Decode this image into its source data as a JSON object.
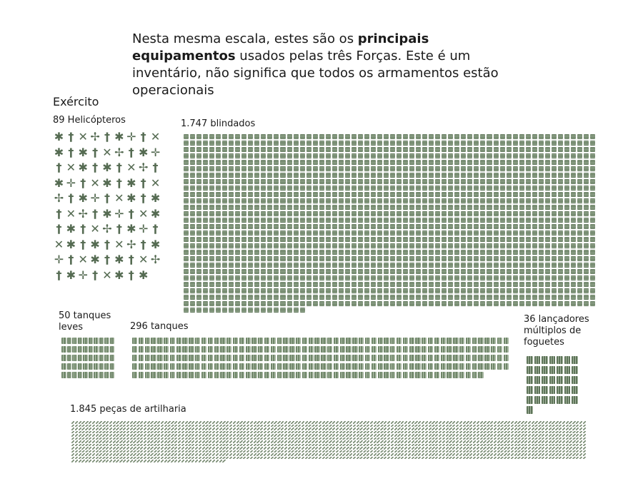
{
  "intro": {
    "part1": "Nesta mesma escala, estes são os ",
    "bold1": "principais equipamentos",
    "part2": " usados pelas três Forças. Este é um inventário, não significa que todos os armamentos estão operacionais"
  },
  "section_title": "Exército",
  "groups": {
    "helicopters": {
      "label": "89 Helicópteros",
      "count": 89,
      "icon": "helicopter-icon"
    },
    "armored": {
      "label": "1.747 blindados",
      "count": 1747,
      "icon": "armored-vehicle-icon"
    },
    "light_tanks": {
      "label": "50 tanques leves",
      "count": 50,
      "icon": "light-tank-icon"
    },
    "tanks": {
      "label": "296 tanques",
      "count": 296,
      "icon": "tank-icon"
    },
    "rocket_launchers": {
      "label": "36 lançadores múltiplos de foguetes",
      "count": 36,
      "icon": "rocket-launcher-icon"
    },
    "artillery": {
      "label": "1.845 peças de artilharia",
      "count": 1845,
      "icon": "artillery-icon"
    }
  },
  "colors": {
    "icon_green": "#5e7559",
    "text": "#1a1a1a"
  }
}
